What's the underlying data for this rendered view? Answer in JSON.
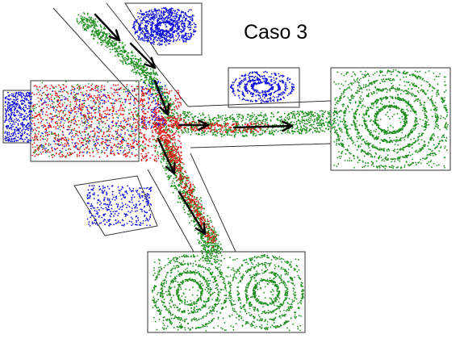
{
  "title": "Caso 3",
  "colors": {
    "green": "#1f8f1f",
    "blue": "#1414e0",
    "red": "#e01414",
    "outline": "#333333",
    "arrow": "#000000"
  }
}
